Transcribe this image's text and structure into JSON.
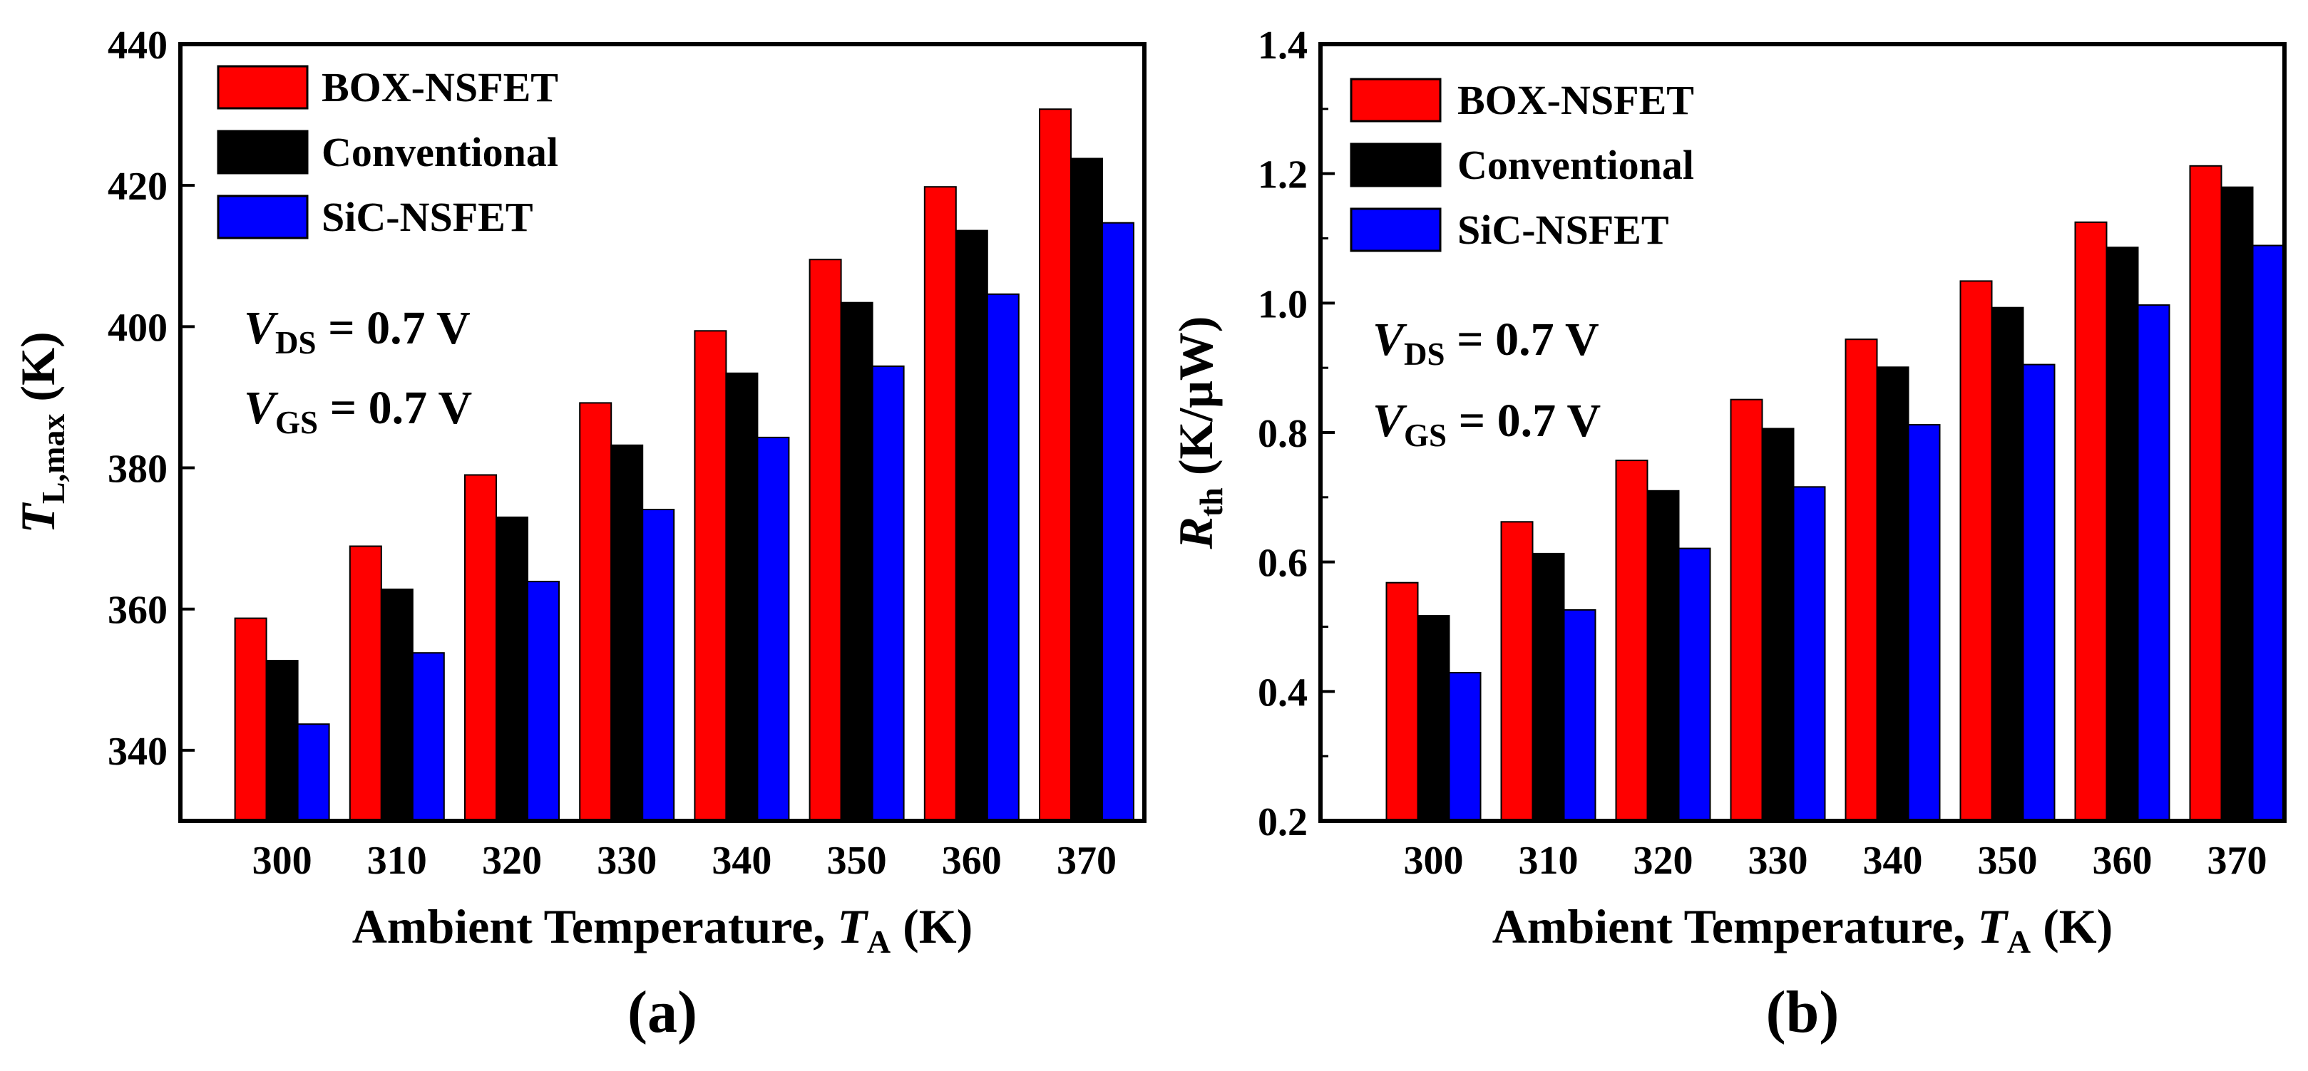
{
  "chart_data": [
    {
      "panel": "(a)",
      "type": "bar",
      "categories": [
        "300",
        "310",
        "320",
        "330",
        "340",
        "350",
        "360",
        "370"
      ],
      "ylim": [
        330,
        440
      ],
      "yticks": [
        340,
        360,
        380,
        400,
        420,
        440
      ],
      "ytick_labels": [
        "340",
        "360",
        "380",
        "400",
        "420",
        "440"
      ],
      "ylabel": {
        "main": "T",
        "sub": "L,max",
        "unit": " (K)"
      },
      "xlabel": {
        "main": "Ambient Temperature, ",
        "italic": "T",
        "sub": "A",
        "unit": " (K)"
      },
      "series": [
        {
          "name": "BOX-NSFET",
          "color": "#ff0000",
          "values": [
            358.7,
            368.9,
            379.0,
            389.2,
            399.4,
            409.5,
            419.8,
            430.8
          ]
        },
        {
          "name": "Conventional",
          "color": "#000000",
          "values": [
            352.7,
            362.8,
            373.0,
            383.2,
            393.4,
            403.4,
            413.6,
            423.8
          ]
        },
        {
          "name": "SiC-NSFET",
          "color": "#0000ff",
          "values": [
            343.7,
            353.8,
            363.9,
            374.1,
            384.3,
            394.4,
            404.6,
            414.7
          ]
        }
      ],
      "annotations": [
        {
          "main": "V",
          "sub": "DS",
          "rest": " = 0.7 V"
        },
        {
          "main": "V",
          "sub": "GS",
          "rest": " = 0.7 V"
        }
      ]
    },
    {
      "panel": "(b)",
      "type": "bar",
      "categories": [
        "300",
        "310",
        "320",
        "330",
        "340",
        "350",
        "360",
        "370"
      ],
      "ylim": [
        0.2,
        1.4
      ],
      "yticks": [
        0.2,
        0.4,
        0.6,
        0.8,
        1.0,
        1.2,
        1.4
      ],
      "ytick_labels": [
        "0.2",
        "0.4",
        "0.6",
        "0.8",
        "1.0",
        "1.2",
        "1.4"
      ],
      "ylabel": {
        "main": "R",
        "sub": "th",
        "unit": " (K/μW)"
      },
      "xlabel": {
        "main": "Ambient Temperature, ",
        "italic": "T",
        "sub": "A",
        "unit": " (K)"
      },
      "series": [
        {
          "name": "BOX-NSFET",
          "color": "#ff0000",
          "values": [
            0.568,
            0.662,
            0.757,
            0.851,
            0.944,
            1.034,
            1.125,
            1.212
          ]
        },
        {
          "name": "Conventional",
          "color": "#000000",
          "values": [
            0.517,
            0.613,
            0.71,
            0.806,
            0.901,
            0.993,
            1.086,
            1.179
          ]
        },
        {
          "name": "SiC-NSFET",
          "color": "#0000ff",
          "values": [
            0.429,
            0.526,
            0.621,
            0.716,
            0.812,
            0.905,
            0.997,
            1.089
          ]
        }
      ],
      "annotations": [
        {
          "main": "V",
          "sub": "DS",
          "rest": " = 0.7 V"
        },
        {
          "main": "V",
          "sub": "GS",
          "rest": " = 0.7 V"
        }
      ]
    }
  ]
}
